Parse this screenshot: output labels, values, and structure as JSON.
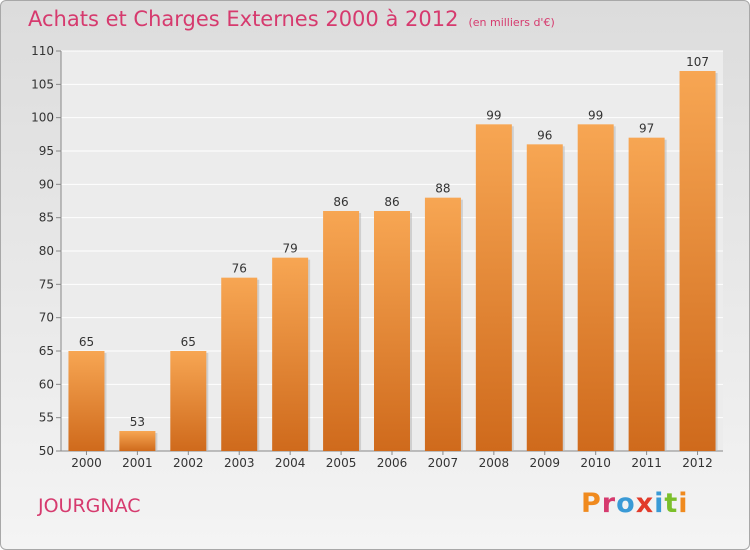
{
  "header": {
    "title": "Achats et Charges Externes 2000 à 2012",
    "subtitle": "(en milliers d'€)"
  },
  "footer": {
    "commune": "JOURGNAC",
    "brand": "Proxiti"
  },
  "colors": {
    "title": "#d63a6e",
    "bar_top": "#f7a653",
    "bar_bottom": "#cf6a1c",
    "brand_letters": [
      "#f08a1e",
      "#d63a6e",
      "#3a9ad6",
      "#e23a2a",
      "#3a9ad6",
      "#7bbf2a",
      "#f08a1e"
    ]
  },
  "chart_data": {
    "type": "bar",
    "categories": [
      "2000",
      "2001",
      "2002",
      "2003",
      "2004",
      "2005",
      "2006",
      "2007",
      "2008",
      "2009",
      "2010",
      "2011",
      "2012"
    ],
    "values": [
      65,
      53,
      65,
      76,
      79,
      86,
      86,
      88,
      99,
      96,
      99,
      97,
      107
    ],
    "ylim": [
      50,
      110
    ],
    "yticks": [
      50,
      55,
      60,
      65,
      70,
      75,
      80,
      85,
      90,
      95,
      100,
      105,
      110
    ],
    "grid": true,
    "legend": "none"
  }
}
